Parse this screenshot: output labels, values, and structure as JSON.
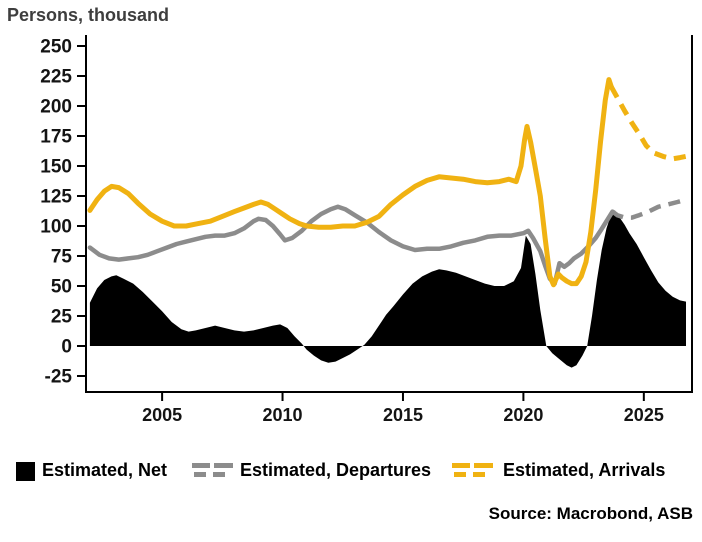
{
  "header": {
    "title": "Persons, thousand"
  },
  "source": "Source: Macrobond, ASB",
  "legend": [
    {
      "label": "Estimated, Net",
      "marker": "filled-square",
      "color": "#000000"
    },
    {
      "label": "Estimated, Departures",
      "marker": "solid-dashed-line",
      "color": "#8c8c8c"
    },
    {
      "label": "Estimated, Arrivals",
      "marker": "solid-dashed-line",
      "color": "#f0b212"
    }
  ],
  "chart_data": {
    "type": "area+line",
    "title": "Persons, thousand",
    "ylabel": "Persons, thousand",
    "xlabel": "",
    "grid": false,
    "legend_position": "bottom",
    "x_axis": {
      "range": [
        2001.84,
        2027.0
      ],
      "ticks": [
        2005,
        2010,
        2015,
        2020,
        2025
      ]
    },
    "y_axis": {
      "range": [
        -38,
        259
      ],
      "ticks": [
        250,
        225,
        200,
        175,
        150,
        125,
        100,
        75,
        50,
        25,
        0,
        -25
      ]
    },
    "series": [
      {
        "name": "Estimated, Net",
        "type": "area",
        "color": "#000000",
        "points": [
          [
            2002.0,
            36
          ],
          [
            2002.3,
            48
          ],
          [
            2002.6,
            55
          ],
          [
            2002.9,
            58
          ],
          [
            2003.1,
            59
          ],
          [
            2003.4,
            56
          ],
          [
            2003.8,
            52
          ],
          [
            2004.2,
            45
          ],
          [
            2004.6,
            37
          ],
          [
            2005.0,
            29
          ],
          [
            2005.4,
            20
          ],
          [
            2005.8,
            14
          ],
          [
            2006.1,
            12
          ],
          [
            2006.4,
            13
          ],
          [
            2006.8,
            15
          ],
          [
            2007.2,
            17
          ],
          [
            2007.6,
            15
          ],
          [
            2008.0,
            13
          ],
          [
            2008.4,
            12
          ],
          [
            2008.8,
            13
          ],
          [
            2009.2,
            15
          ],
          [
            2009.6,
            17
          ],
          [
            2009.9,
            18
          ],
          [
            2010.2,
            15
          ],
          [
            2010.5,
            8
          ],
          [
            2010.8,
            2
          ],
          [
            2011.0,
            -3
          ],
          [
            2011.3,
            -8
          ],
          [
            2011.6,
            -12
          ],
          [
            2011.9,
            -14
          ],
          [
            2012.2,
            -13
          ],
          [
            2012.5,
            -10
          ],
          [
            2012.8,
            -7
          ],
          [
            2013.1,
            -3
          ],
          [
            2013.4,
            1
          ],
          [
            2013.7,
            8
          ],
          [
            2014.0,
            17
          ],
          [
            2014.3,
            26
          ],
          [
            2014.6,
            33
          ],
          [
            2015.0,
            43
          ],
          [
            2015.4,
            52
          ],
          [
            2015.8,
            58
          ],
          [
            2016.2,
            62
          ],
          [
            2016.5,
            64
          ],
          [
            2016.8,
            63
          ],
          [
            2017.2,
            61
          ],
          [
            2017.6,
            58
          ],
          [
            2018.0,
            55
          ],
          [
            2018.4,
            52
          ],
          [
            2018.8,
            50
          ],
          [
            2019.2,
            50
          ],
          [
            2019.6,
            54
          ],
          [
            2019.9,
            65
          ],
          [
            2020.1,
            92
          ],
          [
            2020.3,
            85
          ],
          [
            2020.5,
            60
          ],
          [
            2020.7,
            30
          ],
          [
            2020.95,
            0
          ],
          [
            2021.2,
            -6
          ],
          [
            2021.5,
            -11
          ],
          [
            2021.8,
            -16
          ],
          [
            2022.0,
            -18
          ],
          [
            2022.2,
            -16
          ],
          [
            2022.45,
            -8
          ],
          [
            2022.65,
            0
          ],
          [
            2022.85,
            25
          ],
          [
            2023.05,
            55
          ],
          [
            2023.25,
            80
          ],
          [
            2023.45,
            98
          ],
          [
            2023.65,
            110
          ],
          [
            2023.8,
            113
          ],
          [
            2024.0,
            107
          ],
          [
            2024.2,
            101
          ],
          [
            2024.4,
            94
          ],
          [
            2024.7,
            85
          ],
          [
            2025.0,
            74
          ],
          [
            2025.3,
            63
          ],
          [
            2025.6,
            53
          ],
          [
            2025.9,
            46
          ],
          [
            2026.2,
            41
          ],
          [
            2026.5,
            38
          ],
          [
            2026.75,
            37
          ]
        ]
      },
      {
        "name": "Estimated, Departures",
        "type": "line",
        "color": "#8c8c8c",
        "width": 4.5,
        "solid": [
          [
            2002.0,
            82
          ],
          [
            2002.4,
            76
          ],
          [
            2002.8,
            73
          ],
          [
            2003.2,
            72
          ],
          [
            2003.6,
            73
          ],
          [
            2004.0,
            74
          ],
          [
            2004.4,
            76
          ],
          [
            2004.8,
            79
          ],
          [
            2005.2,
            82
          ],
          [
            2005.6,
            85
          ],
          [
            2006.0,
            87
          ],
          [
            2006.4,
            89
          ],
          [
            2006.8,
            91
          ],
          [
            2007.2,
            92
          ],
          [
            2007.6,
            92
          ],
          [
            2008.0,
            94
          ],
          [
            2008.4,
            98
          ],
          [
            2008.8,
            104
          ],
          [
            2009.0,
            106
          ],
          [
            2009.3,
            105
          ],
          [
            2009.6,
            100
          ],
          [
            2009.9,
            93
          ],
          [
            2010.1,
            88
          ],
          [
            2010.4,
            90
          ],
          [
            2010.8,
            96
          ],
          [
            2011.2,
            104
          ],
          [
            2011.6,
            110
          ],
          [
            2012.0,
            114
          ],
          [
            2012.3,
            116
          ],
          [
            2012.6,
            114
          ],
          [
            2013.0,
            109
          ],
          [
            2013.5,
            103
          ],
          [
            2014.0,
            95
          ],
          [
            2014.5,
            88
          ],
          [
            2015.0,
            83
          ],
          [
            2015.5,
            80
          ],
          [
            2016.0,
            81
          ],
          [
            2016.5,
            81
          ],
          [
            2017.0,
            83
          ],
          [
            2017.5,
            86
          ],
          [
            2018.0,
            88
          ],
          [
            2018.5,
            91
          ],
          [
            2019.0,
            92
          ],
          [
            2019.5,
            92
          ],
          [
            2020.0,
            94
          ],
          [
            2020.2,
            96
          ],
          [
            2020.4,
            90
          ],
          [
            2020.7,
            79
          ],
          [
            2020.9,
            67
          ],
          [
            2021.1,
            56
          ],
          [
            2021.3,
            52
          ],
          [
            2021.5,
            69
          ],
          [
            2021.7,
            66
          ],
          [
            2021.9,
            69
          ],
          [
            2022.1,
            73
          ],
          [
            2022.4,
            77
          ],
          [
            2022.7,
            83
          ],
          [
            2023.0,
            90
          ],
          [
            2023.2,
            96
          ],
          [
            2023.45,
            104
          ],
          [
            2023.7,
            112
          ]
        ],
        "dashed": [
          [
            2023.7,
            112
          ],
          [
            2023.9,
            109
          ],
          [
            2024.2,
            107
          ],
          [
            2024.5,
            107
          ],
          [
            2024.8,
            109
          ],
          [
            2025.2,
            112
          ],
          [
            2025.6,
            116
          ],
          [
            2026.0,
            118
          ],
          [
            2026.4,
            120
          ],
          [
            2026.75,
            122
          ]
        ]
      },
      {
        "name": "Estimated, Arrivals",
        "type": "line",
        "color": "#f0b212",
        "width": 5,
        "solid": [
          [
            2002.0,
            113
          ],
          [
            2002.3,
            122
          ],
          [
            2002.6,
            129
          ],
          [
            2002.9,
            133
          ],
          [
            2003.2,
            132
          ],
          [
            2003.6,
            127
          ],
          [
            2004.0,
            119
          ],
          [
            2004.5,
            110
          ],
          [
            2005.0,
            104
          ],
          [
            2005.5,
            100
          ],
          [
            2006.0,
            100
          ],
          [
            2006.5,
            102
          ],
          [
            2007.0,
            104
          ],
          [
            2007.5,
            108
          ],
          [
            2008.0,
            112
          ],
          [
            2008.4,
            115
          ],
          [
            2008.8,
            118
          ],
          [
            2009.1,
            120
          ],
          [
            2009.4,
            118
          ],
          [
            2009.7,
            114
          ],
          [
            2010.0,
            110
          ],
          [
            2010.3,
            106
          ],
          [
            2010.7,
            102
          ],
          [
            2011.0,
            100
          ],
          [
            2011.5,
            99
          ],
          [
            2012.0,
            99
          ],
          [
            2012.5,
            100
          ],
          [
            2013.0,
            100
          ],
          [
            2013.5,
            103
          ],
          [
            2014.0,
            108
          ],
          [
            2014.5,
            118
          ],
          [
            2015.0,
            126
          ],
          [
            2015.5,
            133
          ],
          [
            2016.0,
            138
          ],
          [
            2016.5,
            141
          ],
          [
            2017.0,
            140
          ],
          [
            2017.5,
            139
          ],
          [
            2018.0,
            137
          ],
          [
            2018.5,
            136
          ],
          [
            2019.0,
            137
          ],
          [
            2019.4,
            139
          ],
          [
            2019.7,
            137
          ],
          [
            2019.9,
            150
          ],
          [
            2020.05,
            172
          ],
          [
            2020.15,
            183
          ],
          [
            2020.3,
            170
          ],
          [
            2020.5,
            148
          ],
          [
            2020.7,
            125
          ],
          [
            2020.9,
            90
          ],
          [
            2021.1,
            58
          ],
          [
            2021.25,
            51
          ],
          [
            2021.45,
            60
          ],
          [
            2021.6,
            57
          ],
          [
            2021.8,
            54
          ],
          [
            2022.0,
            52
          ],
          [
            2022.2,
            52
          ],
          [
            2022.4,
            58
          ],
          [
            2022.6,
            70
          ],
          [
            2022.8,
            95
          ],
          [
            2023.0,
            130
          ],
          [
            2023.2,
            170
          ],
          [
            2023.4,
            205
          ],
          [
            2023.55,
            222
          ],
          [
            2023.65,
            216
          ]
        ],
        "dashed": [
          [
            2023.65,
            216
          ],
          [
            2023.9,
            207
          ],
          [
            2024.2,
            196
          ],
          [
            2024.5,
            186
          ],
          [
            2024.8,
            177
          ],
          [
            2025.1,
            167
          ],
          [
            2025.4,
            161
          ],
          [
            2025.8,
            158
          ],
          [
            2026.2,
            156
          ],
          [
            2026.5,
            157
          ],
          [
            2026.75,
            158
          ]
        ]
      }
    ]
  }
}
